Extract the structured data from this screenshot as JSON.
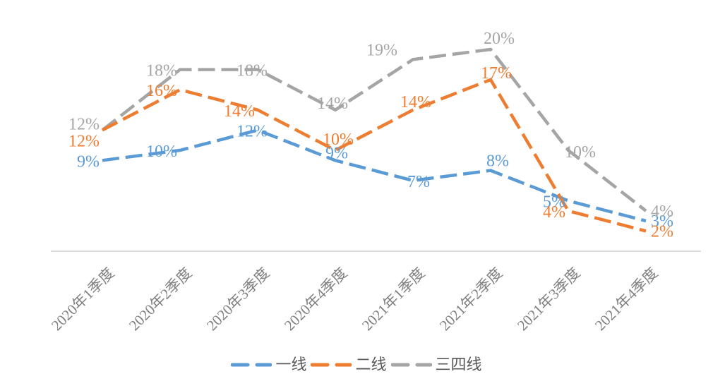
{
  "chart_data": {
    "type": "line",
    "title": "",
    "line_style": "dashed",
    "grid": false,
    "legend_position": "bottom",
    "value_suffix": "%",
    "ylim": [
      0,
      22
    ],
    "axis_color": "#D9D9D9",
    "category_label_color": "#808080",
    "legend_text_color": "#595959",
    "categories": [
      "2020年1季度",
      "2020年2季度",
      "2020年3季度",
      "2020年4季度",
      "2021年1季度",
      "2021年2季度",
      "2021年3季度",
      "2021年4季度"
    ],
    "series": [
      {
        "name": "一线",
        "color": "#5B9BD5",
        "values": [
          9,
          10,
          12,
          9,
          7,
          8,
          5,
          3
        ],
        "labels": [
          "9%",
          "10%",
          "12%",
          "9%",
          "7%",
          "8%",
          "5%",
          "3%"
        ]
      },
      {
        "name": "二线",
        "color": "#ED7D31",
        "values": [
          12,
          16,
          14,
          10,
          14,
          17,
          4,
          2
        ],
        "labels": [
          "12%",
          "16%",
          "14%",
          "10%",
          "14%",
          "17%",
          "4%",
          "2%"
        ]
      },
      {
        "name": "三四线",
        "color": "#A5A5A5",
        "values": [
          12,
          18,
          18,
          14,
          19,
          20,
          10,
          4
        ],
        "labels": [
          "12%",
          "18%",
          "18%",
          "14%",
          "19%",
          "20%",
          "10%",
          "4%"
        ]
      }
    ]
  }
}
